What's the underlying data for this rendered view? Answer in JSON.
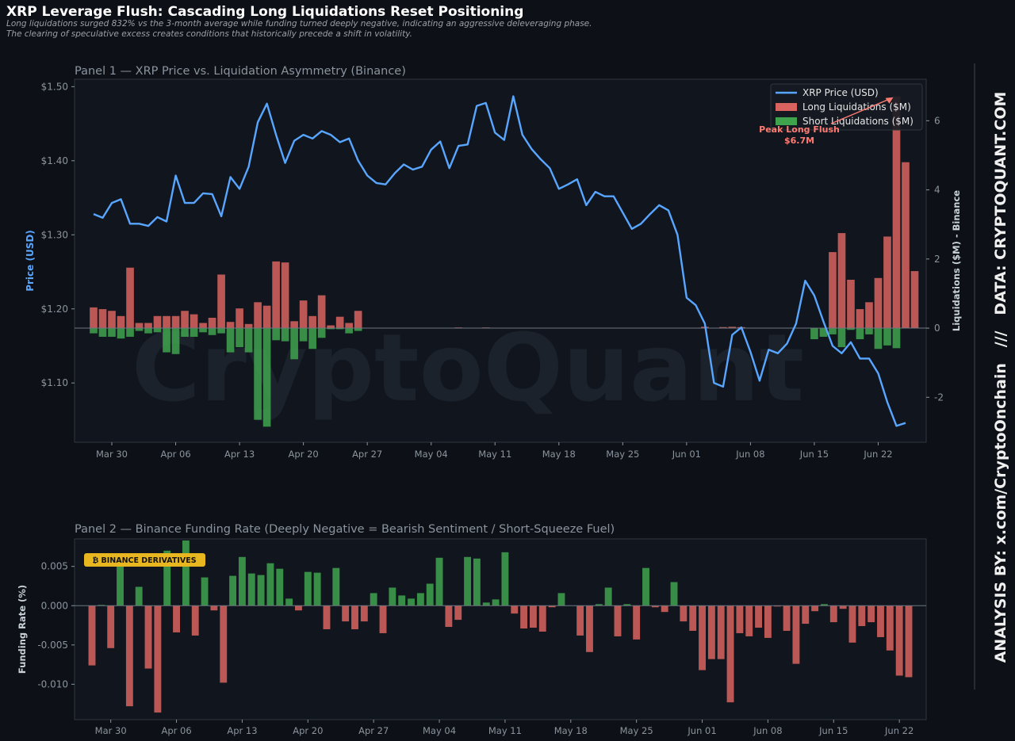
{
  "header": {
    "title": "XRP Leverage Flush: Cascading Long Liquidations Reset Positioning",
    "subtitle_1": "Long liquidations surged 832% vs the 3-month average while funding turned deeply negative, indicating an aggressive deleveraging phase.",
    "subtitle_2": "The clearing of speculative excess creates conditions that historically precede a shift in volatility."
  },
  "watermark": "CryptoQuant",
  "side_credit": "ANALYSIS BY: x.com/CryptoOnchain   ///   DATA: CRYPTOQUANT.COM",
  "colors": {
    "background": "#0d1117",
    "panel": "#11161e",
    "price_line": "#58a6ff",
    "long_bar": "#d9645f",
    "short_bar": "#3fa34d",
    "funding_positive": "#3fa34d",
    "funding_negative": "#d9645f",
    "badge": "#e8b61f"
  },
  "chart_data": [
    {
      "type": "line",
      "title": "Panel 1 — XRP Price vs. Liquidation Asymmetry (Binance)",
      "start_date": "2025-03-28",
      "x_tick_labels": [
        "Mar 30",
        "Apr 06",
        "Apr 13",
        "Apr 20",
        "Apr 27",
        "May 04",
        "May 11",
        "May 18",
        "May 25",
        "Jun 01",
        "Jun 08",
        "Jun 15",
        "Jun 22"
      ],
      "ylabel": "Price (USD)",
      "ylabel_right": "Liquidations ($M) - Binance",
      "y_ticks": [
        "$1.10",
        "$1.20",
        "$1.30",
        "$1.40",
        "$1.50"
      ],
      "y_ticks_right": [
        "-2",
        "0",
        "2",
        "4",
        "6"
      ],
      "ylim": [
        1.02,
        1.51
      ],
      "ylim_right": [
        -3.3,
        7.2
      ],
      "legend": [
        "XRP Price (USD)",
        "Long Liquidations ($M)",
        "Short Liquidations ($M)"
      ],
      "legend_position": "top-right",
      "annotation": {
        "line1": "Peak Long Flush",
        "line2": "$6.7M"
      },
      "series": [
        {
          "name": "XRP Price (USD)",
          "values": [
            1.328,
            1.323,
            1.343,
            1.348,
            1.315,
            1.315,
            1.312,
            1.324,
            1.318,
            1.38,
            1.343,
            1.343,
            1.356,
            1.355,
            1.325,
            1.378,
            1.362,
            1.392,
            1.452,
            1.477,
            1.435,
            1.397,
            1.427,
            1.435,
            1.43,
            1.44,
            1.435,
            1.425,
            1.43,
            1.4,
            1.38,
            1.37,
            1.368,
            1.383,
            1.395,
            1.388,
            1.392,
            1.415,
            1.426,
            1.39,
            1.42,
            1.422,
            1.474,
            1.478,
            1.438,
            1.428,
            1.487,
            1.435,
            1.416,
            1.402,
            1.39,
            1.362,
            1.368,
            1.375,
            1.34,
            1.358,
            1.352,
            1.352,
            1.33,
            1.308,
            1.315,
            1.328,
            1.34,
            1.333,
            1.3,
            1.215,
            1.205,
            1.18,
            1.1,
            1.095,
            1.165,
            1.175,
            1.142,
            1.103,
            1.145,
            1.14,
            1.153,
            1.18,
            1.238,
            1.218,
            1.183,
            1.15,
            1.14,
            1.155,
            1.133,
            1.133,
            1.113,
            1.074,
            1.042,
            1.046
          ]
        },
        {
          "name": "Long Liquidations ($M)",
          "values": [
            0.6,
            0.55,
            0.5,
            0.35,
            1.75,
            0.15,
            0.15,
            0.35,
            0.35,
            0.35,
            0.5,
            0.4,
            0.15,
            0.3,
            1.55,
            0.18,
            0.57,
            0.12,
            0.75,
            0.65,
            1.93,
            1.9,
            0.2,
            0.8,
            0.35,
            0.95,
            0.08,
            0.33,
            0.15,
            0.5,
            0,
            0,
            0,
            0,
            0,
            0,
            0,
            0,
            0,
            0,
            0.02,
            0,
            0,
            0.02,
            0,
            0,
            0,
            0,
            0,
            0,
            0,
            0,
            0,
            0,
            0,
            0,
            0,
            0,
            0,
            0,
            0,
            0,
            0,
            0,
            0,
            0,
            0,
            0.04,
            0,
            0.03,
            0.04,
            0.03,
            0,
            0,
            0,
            0,
            0,
            0,
            0,
            0,
            0,
            2.2,
            2.75,
            1.4,
            0.55,
            0.75,
            1.45,
            2.65,
            6.7,
            4.8,
            1.65,
            0
          ]
        },
        {
          "name": "Short Liquidations ($M)",
          "values": [
            -0.15,
            -0.25,
            -0.25,
            -0.3,
            -0.25,
            -0.08,
            -0.15,
            -0.12,
            -0.7,
            -0.75,
            -0.25,
            -0.25,
            -0.12,
            -0.2,
            -0.15,
            -0.7,
            -0.55,
            -0.7,
            -2.65,
            -2.85,
            -0.35,
            -0.38,
            -0.9,
            -0.38,
            -0.6,
            -0.28,
            -0.03,
            -0.03,
            -0.15,
            -0.08,
            0,
            0,
            0,
            0,
            0,
            0,
            0,
            0,
            0,
            0,
            0,
            0,
            0,
            0,
            0,
            0,
            0,
            0,
            0,
            0,
            0,
            0,
            0,
            0,
            0,
            0,
            0,
            0,
            0,
            0,
            0,
            0,
            0,
            0,
            0,
            0,
            0,
            0,
            0,
            0,
            0,
            0,
            0,
            0,
            0,
            0,
            0,
            0,
            0,
            -0.32,
            -0.25,
            -0.18,
            -0.55,
            -0.05,
            -0.32,
            -0.18,
            -0.6,
            -0.5,
            -0.58,
            0
          ]
        }
      ]
    },
    {
      "type": "bar",
      "title": "Panel 2 — Binance Funding Rate (Deeply Negative = Bearish Sentiment / Short-Squeeze Fuel)",
      "start_date": "2025-03-28",
      "x_tick_labels": [
        "Mar 30",
        "Apr 06",
        "Apr 13",
        "Apr 20",
        "Apr 27",
        "May 04",
        "May 11",
        "May 18",
        "May 25",
        "Jun 01",
        "Jun 08",
        "Jun 15",
        "Jun 22"
      ],
      "ylabel": "Funding Rate (%)",
      "y_ticks": [
        "-0.010",
        "-0.005",
        "0.000",
        "0.005"
      ],
      "ylim": [
        -0.0145,
        0.0085
      ],
      "badge": "₿ BINANCE DERIVATIVES",
      "series": [
        {
          "name": "Funding Rate",
          "values": [
            -0.0076,
            0.0001,
            -0.0054,
            0.0065,
            -0.0128,
            0.0024,
            -0.008,
            -0.0136,
            0.007,
            -0.0034,
            0.0083,
            -0.0038,
            0.0036,
            -0.0006,
            -0.0098,
            0.0038,
            0.0062,
            0.0041,
            0.0039,
            0.0054,
            0.0047,
            0.0009,
            -0.0006,
            0.0043,
            0.0042,
            -0.003,
            0.0048,
            -0.002,
            -0.003,
            -0.002,
            0.0016,
            -0.0035,
            0.0023,
            0.0013,
            0.0009,
            0.0016,
            0.0028,
            0.0061,
            -0.0027,
            -0.0018,
            0.0062,
            0.006,
            0.0004,
            0.0008,
            0.0068,
            -0.001,
            -0.0029,
            -0.0028,
            -0.0033,
            -0.0002,
            0.0016,
            0,
            -0.0038,
            -0.0059,
            0.0002,
            0.0023,
            -0.0039,
            0.0002,
            -0.0043,
            0.0048,
            -0.0002,
            -0.0008,
            0.003,
            -0.002,
            -0.0032,
            -0.0082,
            -0.0068,
            -0.0068,
            -0.0123,
            -0.0035,
            -0.0039,
            -0.0028,
            -0.0041,
            -0.0001,
            -0.0032,
            -0.0074,
            -0.0023,
            -0.0007,
            0.0002,
            -0.0021,
            -0.0004,
            -0.0047,
            -0.0026,
            -0.0021,
            -0.004,
            -0.0057,
            -0.0089,
            -0.0091
          ]
        }
      ]
    }
  ]
}
